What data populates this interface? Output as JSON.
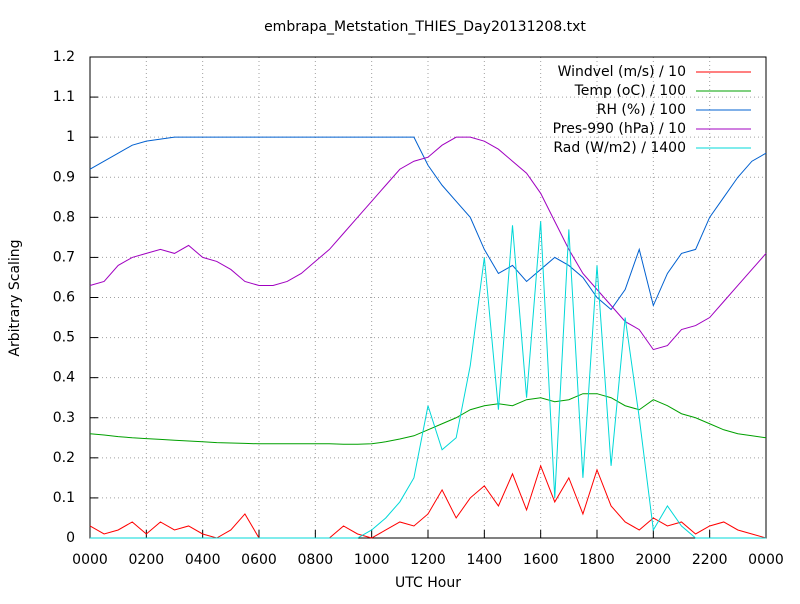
{
  "chart_data": {
    "type": "line",
    "title": "embrapa_Metstation_THIES_Day20131208.txt",
    "x_label": "UTC Hour",
    "y_label": "Arbitrary Scaling",
    "x": [
      0,
      0.5,
      1,
      1.5,
      2,
      2.5,
      3,
      3.5,
      4,
      4.5,
      5,
      5.5,
      6,
      6.5,
      7,
      7.5,
      8,
      8.5,
      9,
      9.5,
      10,
      10.5,
      11,
      11.5,
      12,
      12.5,
      13,
      13.5,
      14,
      14.5,
      15,
      15.5,
      16,
      16.5,
      17,
      17.5,
      18,
      18.5,
      19,
      19.5,
      20,
      20.5,
      21,
      21.5,
      22,
      22.5,
      23,
      23.5,
      24
    ],
    "series": [
      {
        "name": "Windvel (m/s) / 10",
        "color": "#ff0000",
        "values": [
          0.03,
          0.01,
          0.02,
          0.04,
          0.01,
          0.04,
          0.02,
          0.03,
          0.01,
          0,
          0.02,
          0.06,
          0,
          0,
          0,
          0,
          0,
          0,
          0.03,
          0.01,
          0,
          0.02,
          0.04,
          0.03,
          0.06,
          0.12,
          0.05,
          0.1,
          0.13,
          0.08,
          0.16,
          0.07,
          0.18,
          0.09,
          0.15,
          0.06,
          0.17,
          0.08,
          0.04,
          0.02,
          0.05,
          0.03,
          0.04,
          0.01,
          0.03,
          0.04,
          0.02,
          0.01,
          0
        ]
      },
      {
        "name": "Temp (oC) / 100",
        "color": "#00a000",
        "values": [
          0.26,
          0.257,
          0.253,
          0.25,
          0.248,
          0.246,
          0.244,
          0.242,
          0.24,
          0.238,
          0.237,
          0.236,
          0.235,
          0.235,
          0.235,
          0.235,
          0.235,
          0.235,
          0.234,
          0.234,
          0.235,
          0.24,
          0.247,
          0.255,
          0.27,
          0.285,
          0.3,
          0.32,
          0.33,
          0.335,
          0.33,
          0.345,
          0.35,
          0.34,
          0.345,
          0.36,
          0.36,
          0.35,
          0.33,
          0.32,
          0.345,
          0.33,
          0.31,
          0.3,
          0.285,
          0.27,
          0.26,
          0.255,
          0.25
        ]
      },
      {
        "name": "RH (%) / 100",
        "color": "#0060d0",
        "values": [
          0.92,
          0.94,
          0.96,
          0.98,
          0.99,
          0.995,
          1,
          1,
          1,
          1,
          1,
          1,
          1,
          1,
          1,
          1,
          1,
          1,
          1,
          1,
          1,
          1,
          1,
          1,
          0.93,
          0.88,
          0.84,
          0.8,
          0.72,
          0.66,
          0.68,
          0.64,
          0.67,
          0.7,
          0.68,
          0.65,
          0.6,
          0.57,
          0.62,
          0.72,
          0.58,
          0.66,
          0.71,
          0.72,
          0.8,
          0.85,
          0.9,
          0.94,
          0.96
        ]
      },
      {
        "name": "Pres-990 (hPa) / 10",
        "color": "#a000c0",
        "values": [
          0.63,
          0.64,
          0.68,
          0.7,
          0.71,
          0.72,
          0.71,
          0.73,
          0.7,
          0.69,
          0.67,
          0.64,
          0.63,
          0.63,
          0.64,
          0.66,
          0.69,
          0.72,
          0.76,
          0.8,
          0.84,
          0.88,
          0.92,
          0.94,
          0.95,
          0.98,
          1,
          1,
          0.99,
          0.97,
          0.94,
          0.91,
          0.86,
          0.79,
          0.72,
          0.66,
          0.62,
          0.58,
          0.54,
          0.52,
          0.47,
          0.48,
          0.52,
          0.53,
          0.55,
          0.59,
          0.63,
          0.67,
          0.71
        ]
      },
      {
        "name": "Rad (W/m2) / 1400",
        "color": "#00d8d8",
        "values": [
          0,
          0,
          0,
          0,
          0,
          0,
          0,
          0,
          0,
          0,
          0,
          0,
          0,
          0,
          0,
          0,
          0,
          0,
          0,
          0,
          0.02,
          0.05,
          0.09,
          0.15,
          0.33,
          0.22,
          0.25,
          0.43,
          0.7,
          0.32,
          0.78,
          0.35,
          0.79,
          0.1,
          0.77,
          0.15,
          0.68,
          0.18,
          0.55,
          0.3,
          0.02,
          0.08,
          0.03,
          0,
          0,
          0,
          0,
          0,
          0
        ]
      }
    ],
    "xlim": [
      0,
      24
    ],
    "xticks": [
      {
        "value": 0,
        "label": "0000"
      },
      {
        "value": 2,
        "label": "0200"
      },
      {
        "value": 4,
        "label": "0400"
      },
      {
        "value": 6,
        "label": "0600"
      },
      {
        "value": 8,
        "label": "0800"
      },
      {
        "value": 10,
        "label": "1000"
      },
      {
        "value": 12,
        "label": "1200"
      },
      {
        "value": 14,
        "label": "1400"
      },
      {
        "value": 16,
        "label": "1600"
      },
      {
        "value": 18,
        "label": "1800"
      },
      {
        "value": 20,
        "label": "2000"
      },
      {
        "value": 22,
        "label": "2200"
      },
      {
        "value": 24,
        "label": "0000"
      }
    ],
    "ylim": [
      0,
      1.2
    ],
    "yticks": [
      0,
      0.1,
      0.2,
      0.3,
      0.4,
      0.5,
      0.6,
      0.7,
      0.8,
      0.9,
      1,
      1.1,
      1.2
    ],
    "grid": true,
    "legend": "top-right"
  }
}
